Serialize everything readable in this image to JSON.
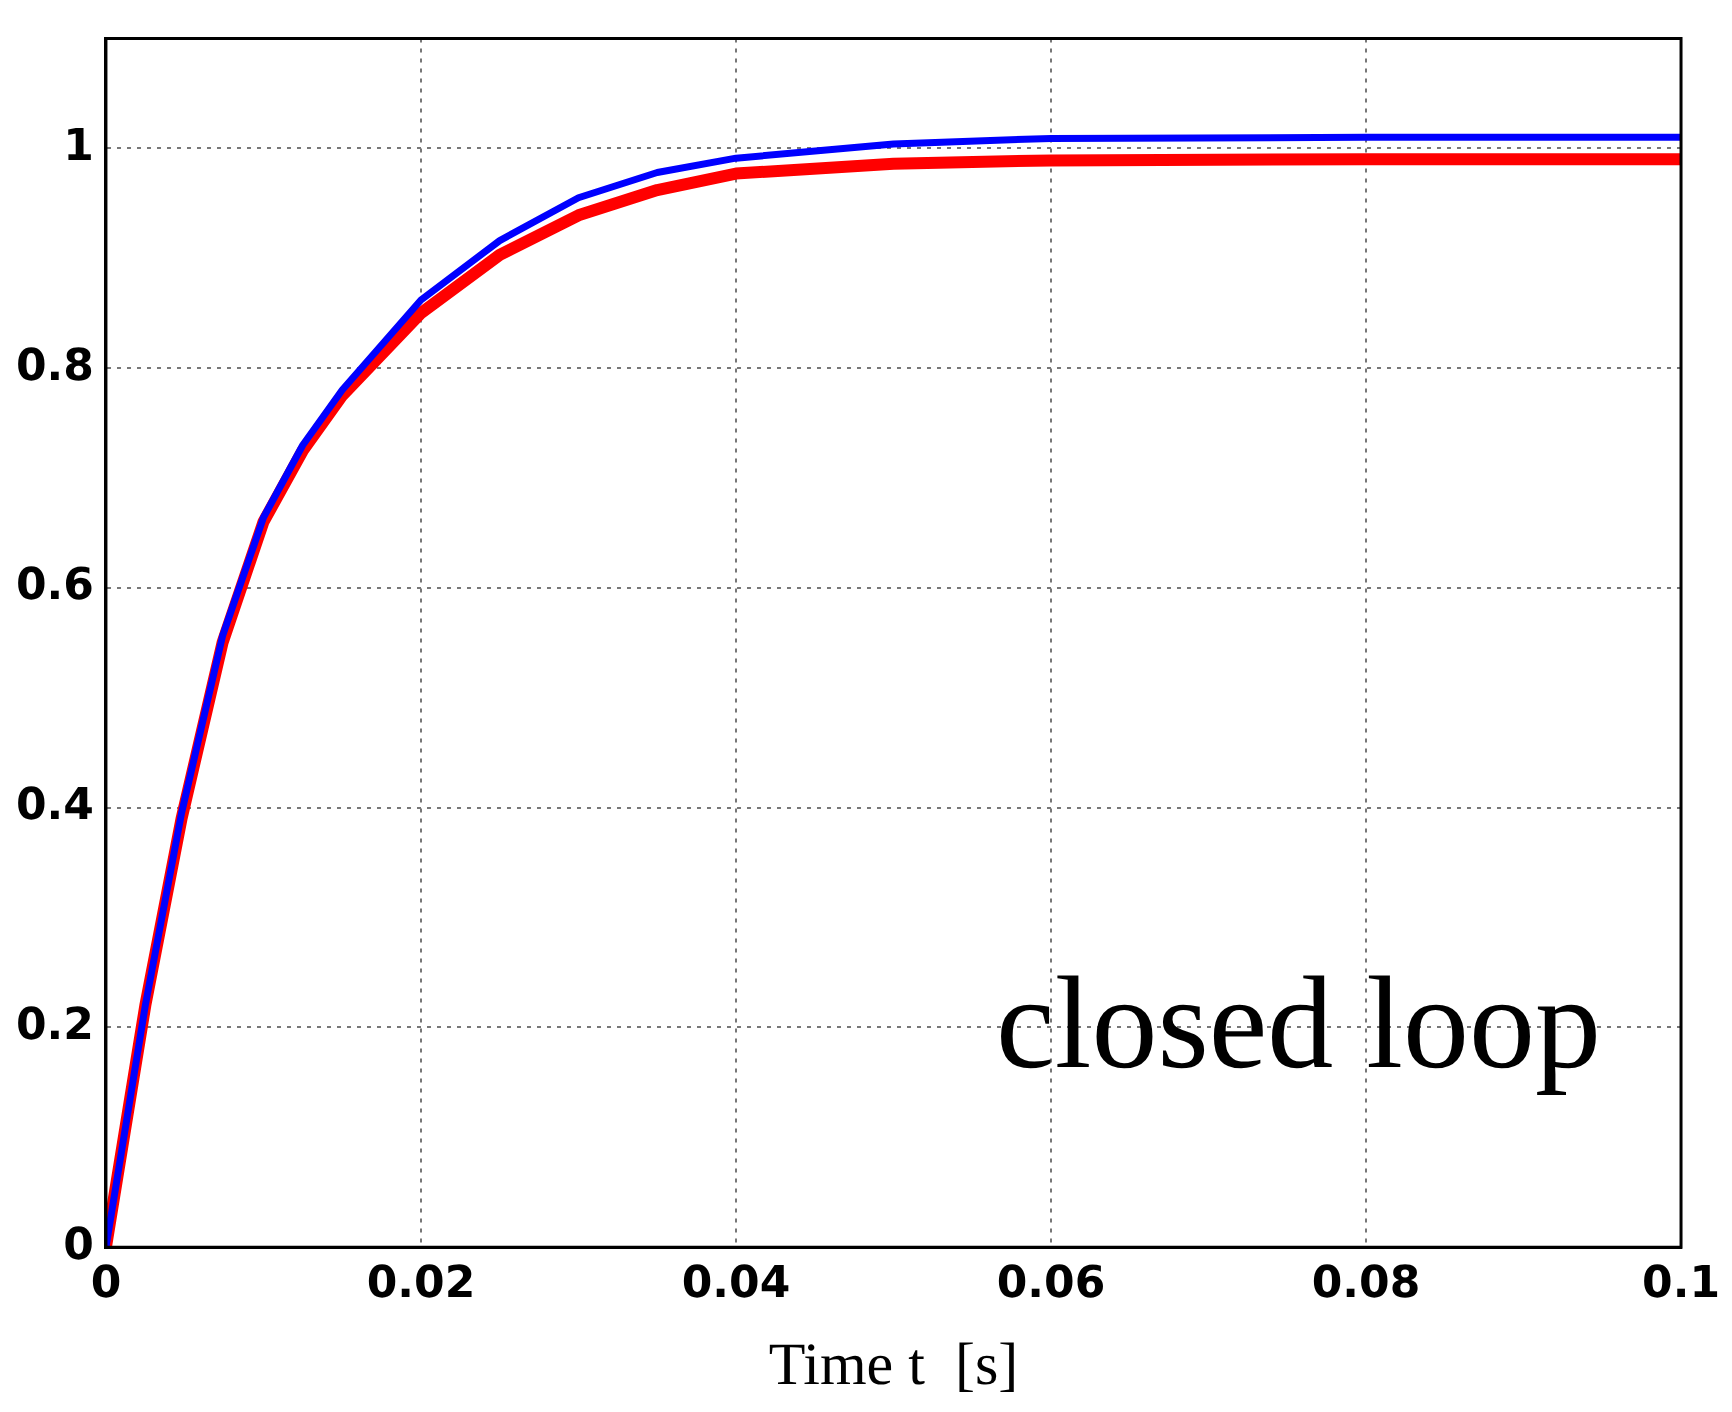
{
  "chart_data": {
    "type": "line",
    "xlabel": "Time t  [s]",
    "annotations": [
      "closed loop"
    ],
    "x": [
      0,
      0.0025,
      0.0048,
      0.0074,
      0.01,
      0.0125,
      0.015,
      0.02,
      0.025,
      0.03,
      0.035,
      0.04,
      0.05,
      0.06,
      0.08,
      0.1
    ],
    "series": [
      {
        "color": "#ff0000",
        "values": [
          0,
          0.22,
          0.39,
          0.55,
          0.66,
          0.725,
          0.775,
          0.85,
          0.903,
          0.939,
          0.962,
          0.977,
          0.986,
          0.989,
          0.99,
          0.99
        ]
      },
      {
        "color": "#0000ff",
        "values": [
          0,
          0.22,
          0.395,
          0.556,
          0.664,
          0.73,
          0.78,
          0.862,
          0.916,
          0.955,
          0.978,
          0.991,
          1.004,
          1.009,
          1.01,
          1.01
        ]
      }
    ],
    "xlim": [
      0,
      0.1
    ],
    "xticks": [
      0,
      0.02,
      0.04,
      0.06,
      0.08,
      0.1
    ],
    "ylim": [
      0,
      1.1
    ],
    "yticks": [
      0,
      0.2,
      0.4,
      0.6,
      0.8,
      1
    ],
    "grid": true,
    "legend": false,
    "marker": "none",
    "line_style": "solid"
  }
}
